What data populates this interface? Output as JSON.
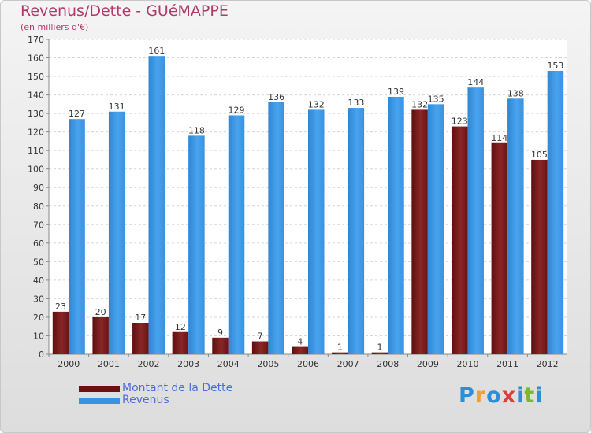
{
  "header": {
    "title": "Revenus/Dette - GUéMAPPE",
    "subtitle": "(en milliers d'€)"
  },
  "logo": {
    "text": "Proxiti",
    "letters": [
      {
        "ch": "P",
        "color": "#2e8fd6"
      },
      {
        "ch": "r",
        "color": "#f0a030"
      },
      {
        "ch": "o",
        "color": "#2e8fd6"
      },
      {
        "ch": "x",
        "color": "#e03a3a"
      },
      {
        "ch": "i",
        "color": "#2e8fd6"
      },
      {
        "ch": "t",
        "color": "#7ab832"
      },
      {
        "ch": "i",
        "color": "#2e8fd6"
      }
    ]
  },
  "colors": {
    "debt": "#7a1a1a",
    "revenue": "#3a93e0",
    "title": "#b03a68",
    "legend_text": "#4a6fd8"
  },
  "chart_data": {
    "type": "bar",
    "title": "Revenus/Dette - GUéMAPPE",
    "subtitle": "(en milliers d'€)",
    "xlabel": "",
    "ylabel": "",
    "ylim": [
      0,
      170
    ],
    "yticks": [
      0,
      10,
      20,
      30,
      40,
      50,
      60,
      70,
      80,
      90,
      100,
      110,
      120,
      130,
      140,
      150,
      160,
      170
    ],
    "grid": true,
    "legend_position": "bottom-left",
    "categories": [
      "2000",
      "2001",
      "2002",
      "2003",
      "2004",
      "2005",
      "2006",
      "2007",
      "2008",
      "2009",
      "2010",
      "2011",
      "2012"
    ],
    "series": [
      {
        "name": "Montant de la Dette",
        "color": "#7a1a1a",
        "values": [
          23,
          20,
          17,
          12,
          9,
          7,
          4,
          1,
          1,
          132,
          123,
          114,
          105
        ]
      },
      {
        "name": "Revenus",
        "color": "#3a93e0",
        "values": [
          127,
          131,
          161,
          118,
          129,
          136,
          132,
          133,
          139,
          135,
          144,
          138,
          153
        ]
      }
    ]
  }
}
